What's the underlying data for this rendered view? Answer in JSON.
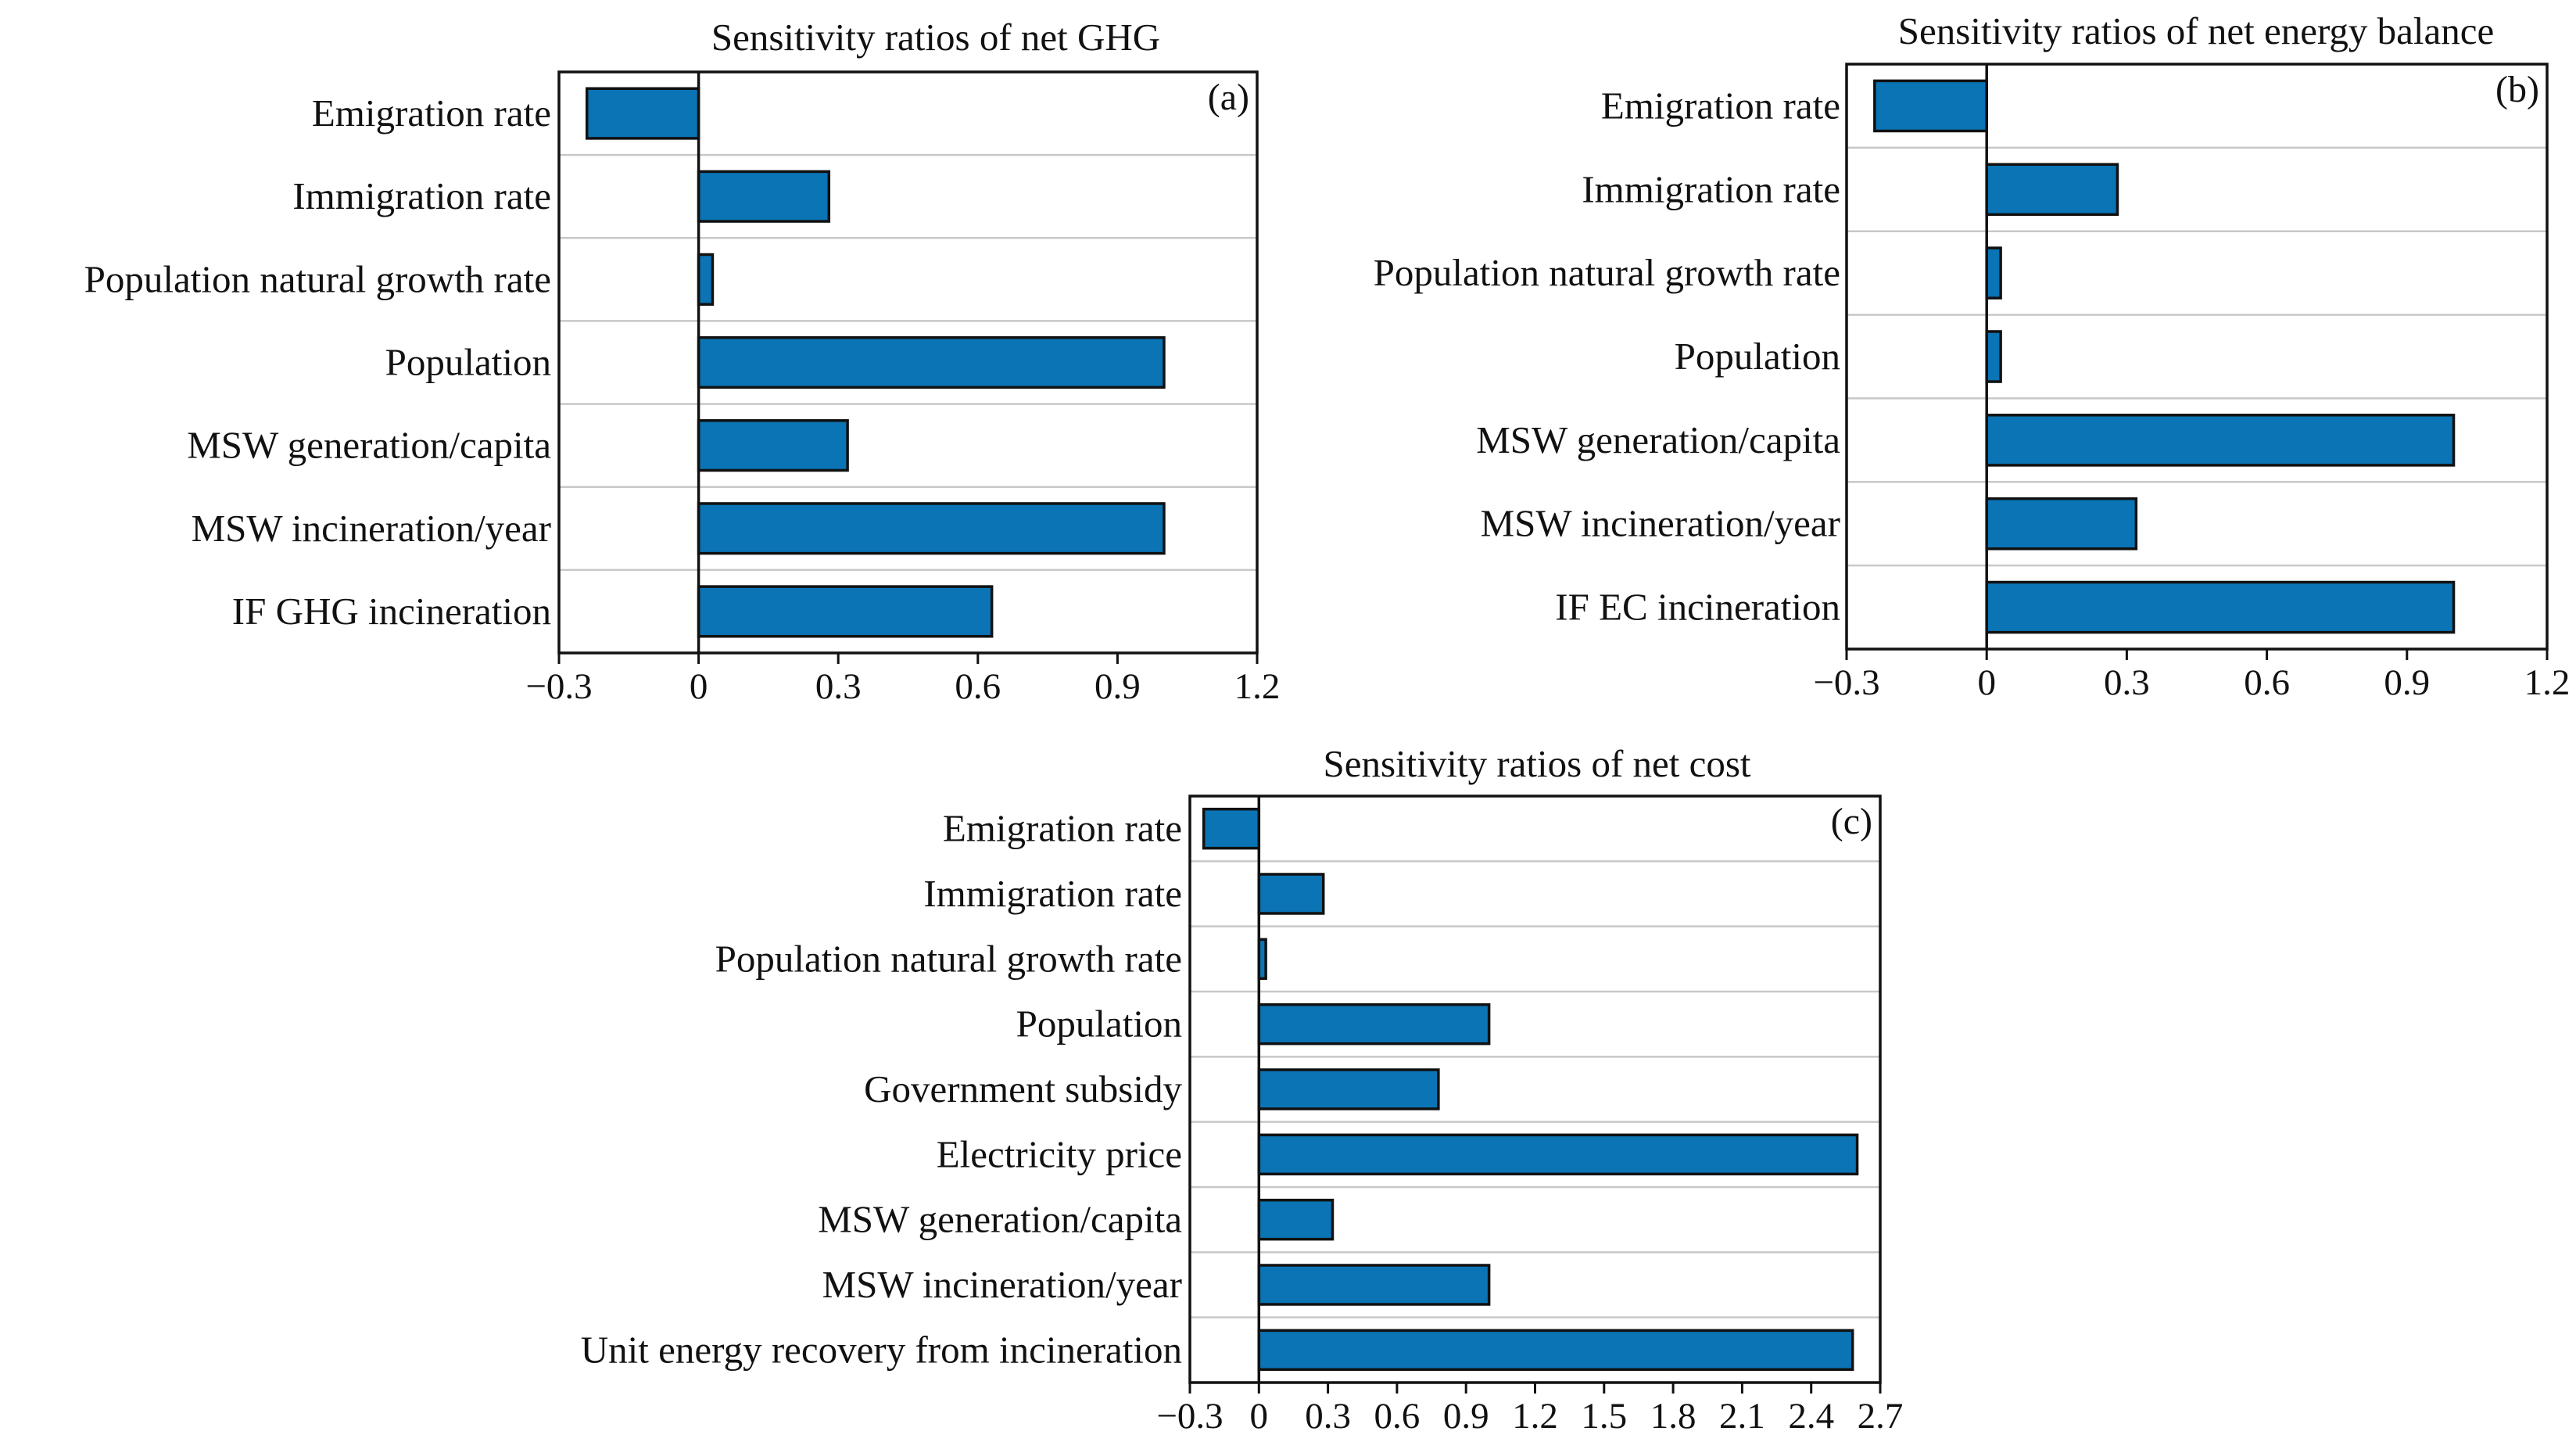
{
  "chart_data": [
    {
      "id": "a",
      "type": "bar",
      "orientation": "horizontal",
      "title": "Sensitivity ratios of net GHG",
      "panel_label": "(a)",
      "categories": [
        "Emigration rate",
        "Immigration rate",
        "Population natural growth rate",
        "Population",
        "MSW generation/capita",
        "MSW incineration/year",
        "IF GHG incineration"
      ],
      "values": [
        -0.24,
        0.28,
        0.03,
        1.0,
        0.32,
        1.0,
        0.63
      ],
      "xlim": [
        -0.3,
        1.2
      ],
      "xticks": [
        -0.3,
        0,
        0.3,
        0.6,
        0.9,
        1.2
      ],
      "xtick_labels": [
        "−0.3",
        "0",
        "0.3",
        "0.6",
        "0.9",
        "1.2"
      ],
      "xlabel": "",
      "ylabel": "",
      "bar_color": "#0a74b4",
      "grid": "horizontal separators"
    },
    {
      "id": "b",
      "type": "bar",
      "orientation": "horizontal",
      "title": "Sensitivity ratios of net energy balance",
      "panel_label": "(b)",
      "categories": [
        "Emigration rate",
        "Immigration rate",
        "Population natural growth rate",
        "Population",
        "MSW generation/capita",
        "MSW incineration/year",
        "IF EC incineration"
      ],
      "values": [
        -0.24,
        0.28,
        0.03,
        0.03,
        1.0,
        0.32,
        1.0
      ],
      "xlim": [
        -0.3,
        1.2
      ],
      "xticks": [
        -0.3,
        0,
        0.3,
        0.6,
        0.9,
        1.2
      ],
      "xtick_labels": [
        "−0.3",
        "0",
        "0.3",
        "0.6",
        "0.9",
        "1.2"
      ],
      "xlabel": "",
      "ylabel": "",
      "bar_color": "#0a74b4",
      "grid": "horizontal separators"
    },
    {
      "id": "c",
      "type": "bar",
      "orientation": "horizontal",
      "title": "Sensitivity ratios of net cost",
      "panel_label": "(c)",
      "categories": [
        "Emigration rate",
        "Immigration rate",
        "Population natural growth rate",
        "Population",
        "Government subsidy",
        "Electricity price",
        "MSW generation/capita",
        "MSW incineration/year",
        "Unit energy recovery from incineration"
      ],
      "values": [
        -0.24,
        0.28,
        0.03,
        1.0,
        0.78,
        2.6,
        0.32,
        1.0,
        2.58
      ],
      "xlim": [
        -0.3,
        2.7
      ],
      "xticks": [
        -0.3,
        0,
        0.3,
        0.6,
        0.9,
        1.2,
        1.5,
        1.8,
        2.1,
        2.4,
        2.7
      ],
      "xtick_labels": [
        "−0.3",
        "0",
        "0.3",
        "0.6",
        "0.9",
        "1.2",
        "1.5",
        "1.8",
        "2.1",
        "2.4",
        "2.7"
      ],
      "xlabel": "",
      "ylabel": "",
      "bar_color": "#0a74b4",
      "grid": "horizontal separators"
    }
  ]
}
